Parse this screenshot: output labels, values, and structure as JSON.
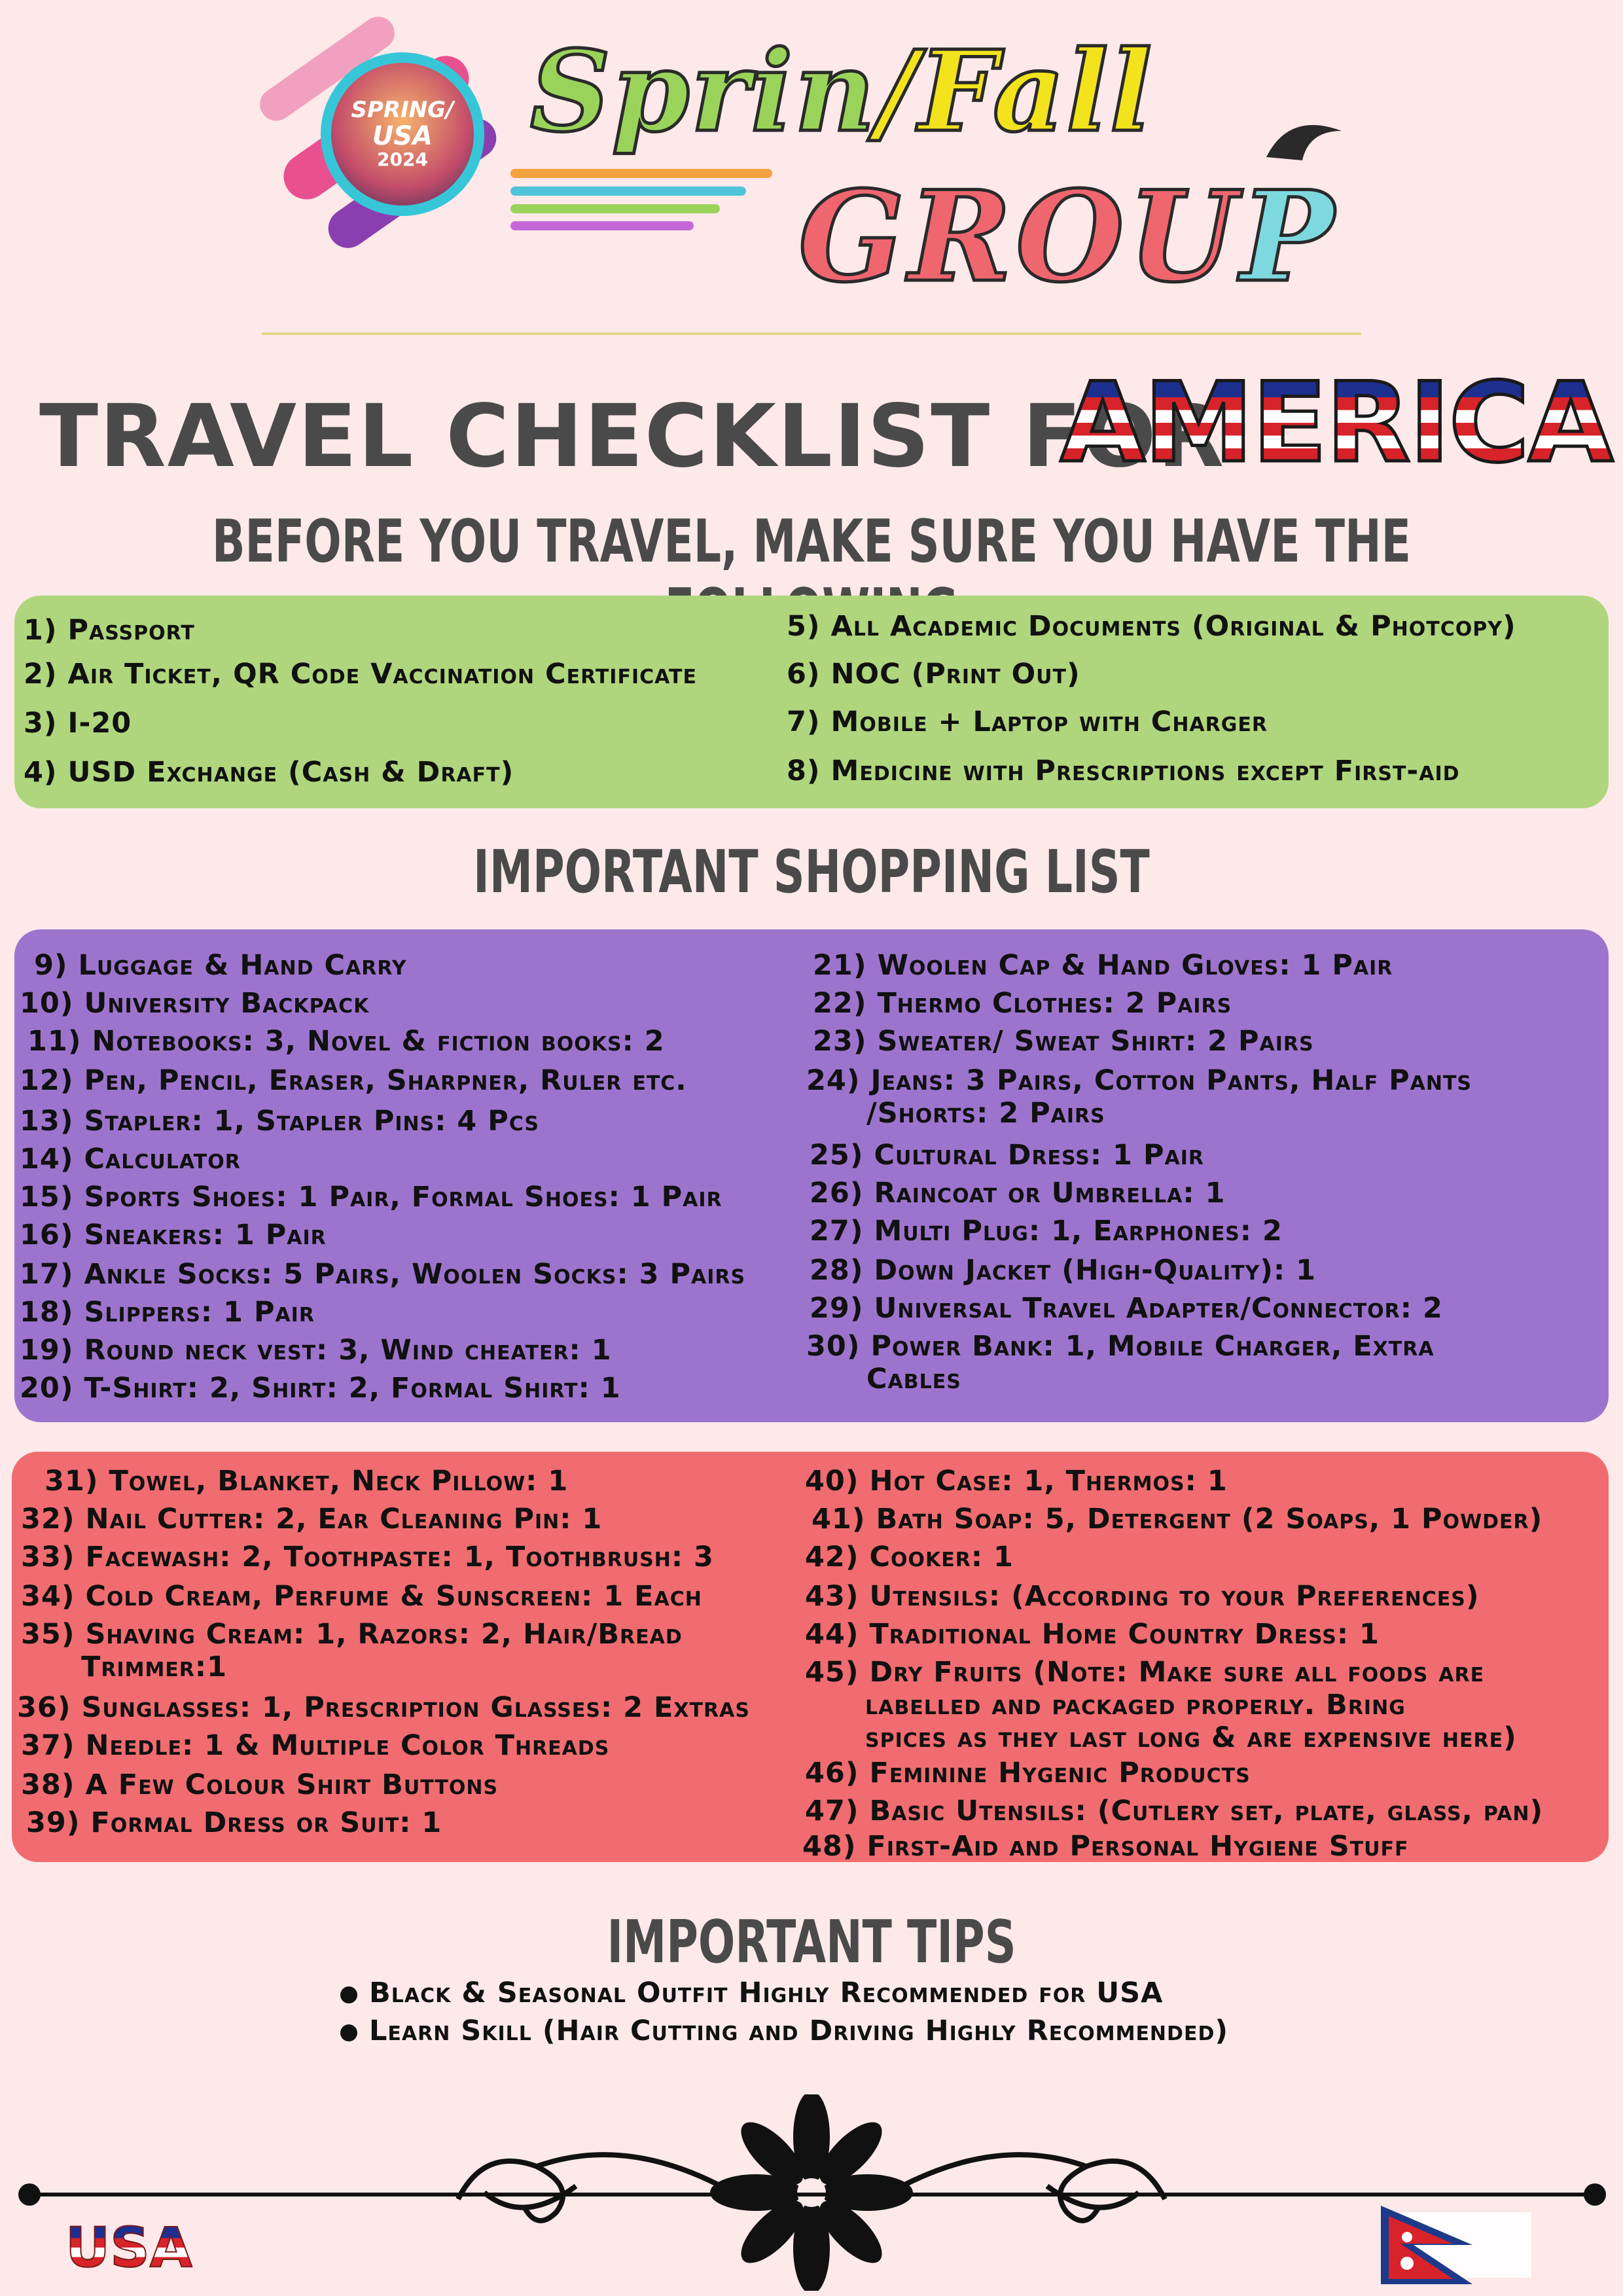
{
  "logo": {
    "badge_line1": "SPRING/",
    "badge_line2": "USA",
    "badge_line3": "2024",
    "title_part1": "Sprin",
    "title_slash": "/",
    "title_part2": "Fall",
    "title_part3": "GROU",
    "title_part4": "P",
    "colors": {
      "green": "#9ad35a",
      "yellow": "#f2e31d",
      "coral": "#f0666f",
      "cyan": "#7dd8e0"
    }
  },
  "title": {
    "main": "TRAVEL CHECKLIST FOR",
    "highlight": "AMERICA"
  },
  "sections": {
    "before": "BEFORE YOU TRAVEL, MAKE SURE YOU HAVE THE FOLLOWING",
    "shopping": "IMPORTANT SHOPPING LIST",
    "tips": "IMPORTANT TIPS"
  },
  "before_items_left": [
    "1) Passport",
    "2) Air Ticket, QR Code Vaccination Certificate",
    "3) I-20",
    "4) USD Exchange (Cash & Draft)"
  ],
  "before_items_right": [
    "5) All Academic Documents (Original & Photcopy)",
    "6) NOC (Print Out)",
    "7) Mobile + Laptop with Charger",
    "8) Medicine with Prescriptions except First-aid"
  ],
  "purple_left": [
    "9) Luggage & Hand Carry",
    "10) University Backpack",
    "11) Notebooks: 3, Novel & fiction books: 2",
    "12) Pen, Pencil, Eraser, Sharpner, Ruler etc.",
    "13) Stapler: 1, Stapler Pins: 4 Pcs",
    "14) Calculator",
    "15) Sports Shoes: 1 Pair, Formal Shoes: 1 Pair",
    "16) Sneakers: 1 Pair",
    "17) Ankle Socks: 5 Pairs, Woolen Socks: 3 Pairs",
    "18) Slippers: 1 Pair",
    "19) Round neck vest: 3, Wind cheater: 1",
    "20) T-Shirt: 2, Shirt: 2, Formal Shirt: 1"
  ],
  "purple_right": [
    {
      "text": "21) Woolen Cap & Hand Gloves: 1 Pair",
      "cont": ""
    },
    {
      "text": "22) Thermo Clothes: 2 Pairs",
      "cont": ""
    },
    {
      "text": "23) Sweater/ Sweat Shirt: 2 Pairs",
      "cont": ""
    },
    {
      "text": "24) Jeans: 3 Pairs, Cotton Pants, Half Pants",
      "cont": "/Shorts: 2 Pairs"
    },
    {
      "text": "25) Cultural Dress: 1 Pair",
      "cont": ""
    },
    {
      "text": "26) Raincoat or Umbrella: 1",
      "cont": ""
    },
    {
      "text": "27) Multi Plug: 1, Earphones: 2",
      "cont": ""
    },
    {
      "text": "28) Down Jacket (High-Quality): 1",
      "cont": ""
    },
    {
      "text": "29) Universal Travel Adapter/Connector: 2",
      "cont": ""
    },
    {
      "text": "30) Power Bank: 1, Mobile Charger, Extra",
      "cont": "Cables"
    }
  ],
  "red_left": [
    {
      "text": "31) Towel, Blanket, Neck Pillow: 1",
      "cont": ""
    },
    {
      "text": "32) Nail Cutter: 2, Ear Cleaning Pin: 1",
      "cont": ""
    },
    {
      "text": "33) Facewash: 2, Toothpaste: 1, Toothbrush: 3",
      "cont": ""
    },
    {
      "text": "34) Cold Cream, Perfume & Sunscreen: 1 Each",
      "cont": ""
    },
    {
      "text": "35) Shaving Cream: 1, Razors: 2, Hair/Bread",
      "cont": "Trimmer:1"
    },
    {
      "text": "36) Sunglasses: 1, Prescription Glasses: 2 Extras",
      "cont": ""
    },
    {
      "text": "37) Needle: 1 & Multiple Color Threads",
      "cont": ""
    },
    {
      "text": "38) A Few Colour Shirt Buttons",
      "cont": ""
    },
    {
      "text": "39) Formal Dress or Suit: 1",
      "cont": ""
    }
  ],
  "red_right": [
    {
      "text": "40) Hot Case: 1, Thermos: 1",
      "cont1": "",
      "cont2": ""
    },
    {
      "text": "41) Bath Soap: 5, Detergent (2 Soaps, 1 Powder)",
      "cont1": "",
      "cont2": ""
    },
    {
      "text": "42) Cooker: 1",
      "cont1": "",
      "cont2": ""
    },
    {
      "text": "43) Utensils: (According to your Preferences)",
      "cont1": "",
      "cont2": ""
    },
    {
      "text": "44) Traditional Home Country Dress: 1",
      "cont1": "",
      "cont2": ""
    },
    {
      "text": "45) Dry Fruits (Note: Make sure all foods are",
      "cont1": "labelled and packaged properly. Bring",
      "cont2": "spices as they last long & are expensive here)"
    },
    {
      "text": "46) Feminine Hygenic Products",
      "cont1": "",
      "cont2": ""
    },
    {
      "text": "47) Basic Utensils: (Cutlery set, plate, glass, pan)",
      "cont1": "",
      "cont2": ""
    },
    {
      "text": "48) First-Aid and Personal Hygiene Stuff",
      "cont1": "",
      "cont2": ""
    }
  ],
  "tips": [
    "Black & Seasonal Outfit Highly Recommended for USA",
    "Learn Skill (Hair Cutting and Driving Highly Recommended)"
  ],
  "footer": {
    "usa_text": "USA",
    "flag_icon": "nepal-flag-icon",
    "ornament_icon": "flower-ornament-icon"
  },
  "colors": {
    "background": "#fde9e9",
    "green_box": "#afd67d",
    "purple_box": "#9d74cd",
    "red_box": "#f06c70",
    "heading": "#4a4a4a"
  }
}
